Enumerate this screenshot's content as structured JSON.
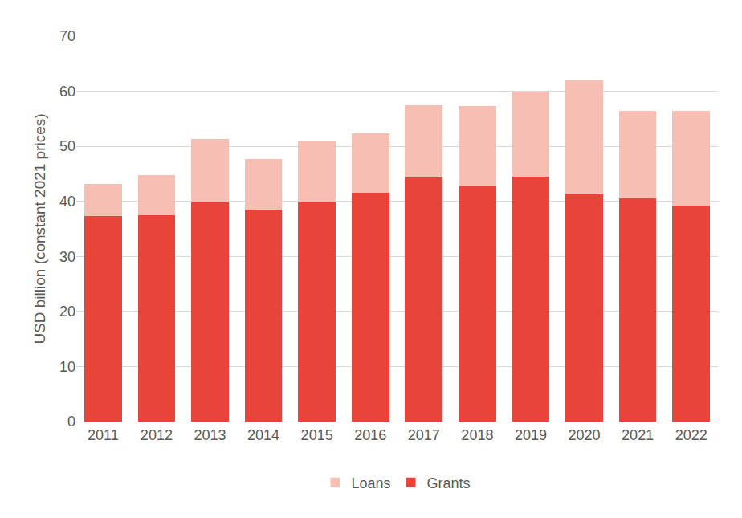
{
  "chart_data": {
    "type": "bar",
    "stacked": true,
    "yaxis_title": "USD billion (constant 2021 prices)",
    "categories": [
      "2011",
      "2012",
      "2013",
      "2014",
      "2015",
      "2016",
      "2017",
      "2018",
      "2019",
      "2020",
      "2021",
      "2022"
    ],
    "series": [
      {
        "name": "Grants",
        "color": "#e8443a",
        "values": [
          37.3,
          37.5,
          39.8,
          38.5,
          39.8,
          41.5,
          44.3,
          42.8,
          44.5,
          41.3,
          40.6,
          39.2
        ]
      },
      {
        "name": "Loans",
        "color": "#f7bfb3",
        "values": [
          5.9,
          7.2,
          11.5,
          9.2,
          11.1,
          10.9,
          13.2,
          14.5,
          15.5,
          20.7,
          15.9,
          17.3
        ]
      }
    ],
    "ylim": [
      0,
      70
    ],
    "yticks": [
      0,
      10,
      20,
      30,
      40,
      50,
      60,
      70
    ],
    "grid": true,
    "legend": "bottom"
  }
}
